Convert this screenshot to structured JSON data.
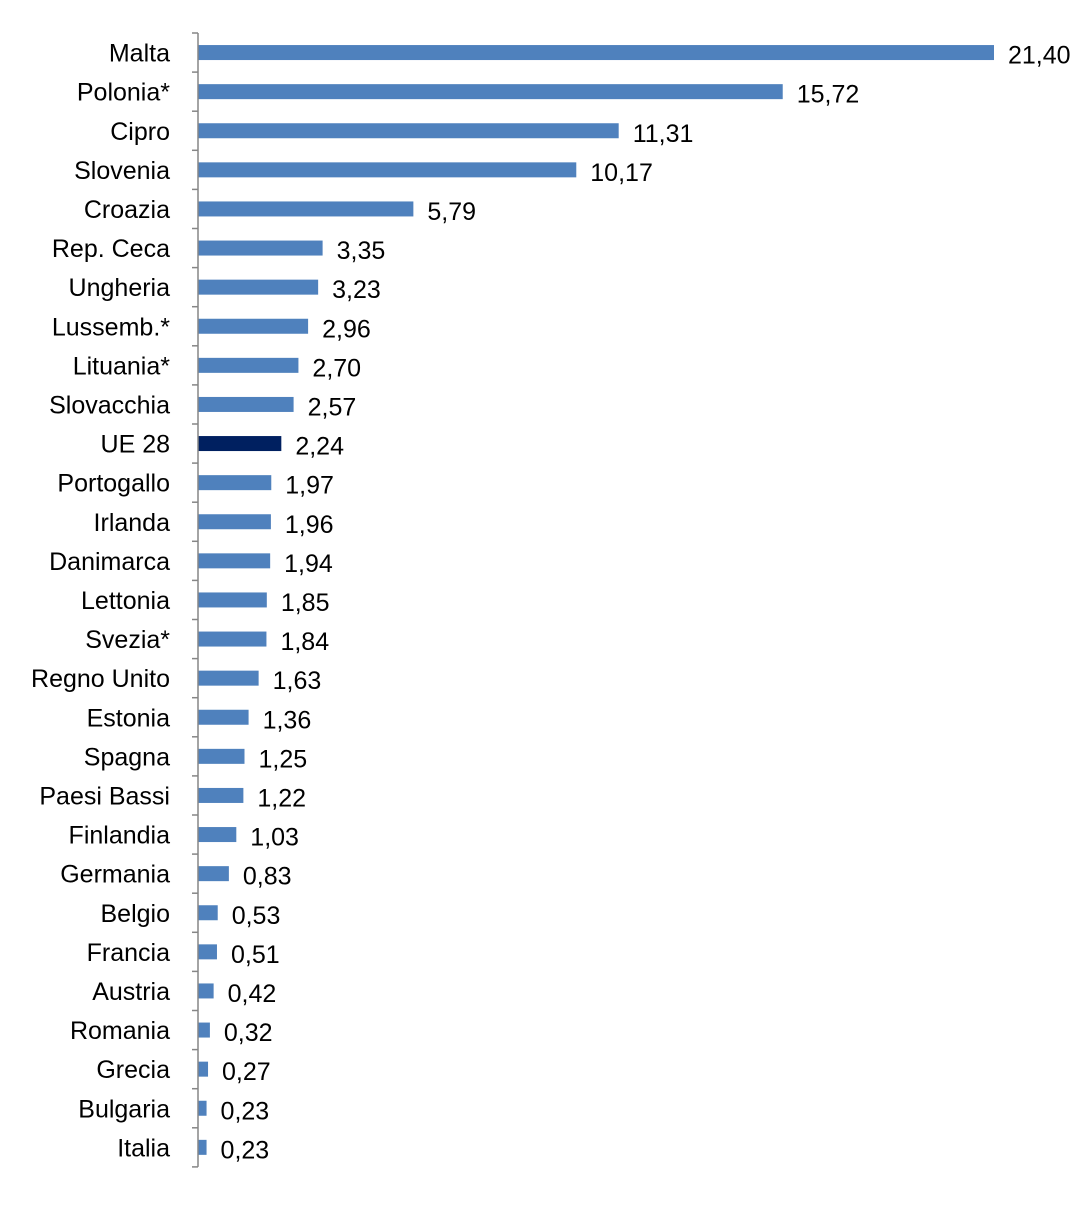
{
  "chart_data": {
    "type": "bar",
    "orientation": "horizontal",
    "title": "",
    "xlabel": "",
    "ylabel": "",
    "grid": false,
    "legend": "none",
    "xlim": [
      0,
      21.4
    ],
    "categories": [
      "Malta",
      "Polonia*",
      "Cipro",
      "Slovenia",
      "Croazia",
      "Rep. Ceca",
      "Ungheria",
      "Lussemb.*",
      "Lituania*",
      "Slovacchia",
      "UE 28",
      "Portogallo",
      "Irlanda",
      "Danimarca",
      "Lettonia",
      "Svezia*",
      "Regno Unito",
      "Estonia",
      "Spagna",
      "Paesi Bassi",
      "Finlandia",
      "Germania",
      "Belgio",
      "Francia",
      "Austria",
      "Romania",
      "Grecia",
      "Bulgaria",
      "Italia"
    ],
    "values": [
      21.4,
      15.72,
      11.31,
      10.17,
      5.79,
      3.35,
      3.23,
      2.96,
      2.7,
      2.57,
      2.24,
      1.97,
      1.96,
      1.94,
      1.85,
      1.84,
      1.63,
      1.36,
      1.25,
      1.22,
      1.03,
      0.83,
      0.53,
      0.51,
      0.42,
      0.32,
      0.27,
      0.23,
      0.23
    ],
    "value_labels": [
      "21,40",
      "15,72",
      "11,31",
      "10,17",
      "5,79",
      "3,35",
      "3,23",
      "2,96",
      "2,70",
      "2,57",
      "2,24",
      "1,97",
      "1,96",
      "1,94",
      "1,85",
      "1,84",
      "1,63",
      "1,36",
      "1,25",
      "1,22",
      "1,03",
      "0,83",
      "0,53",
      "0,51",
      "0,42",
      "0,32",
      "0,27",
      "0,23",
      "0,23"
    ],
    "highlight_category": "UE 28",
    "colors": {
      "bar": "#4F81BD",
      "highlight": "#002060",
      "axis": "#868686"
    }
  }
}
